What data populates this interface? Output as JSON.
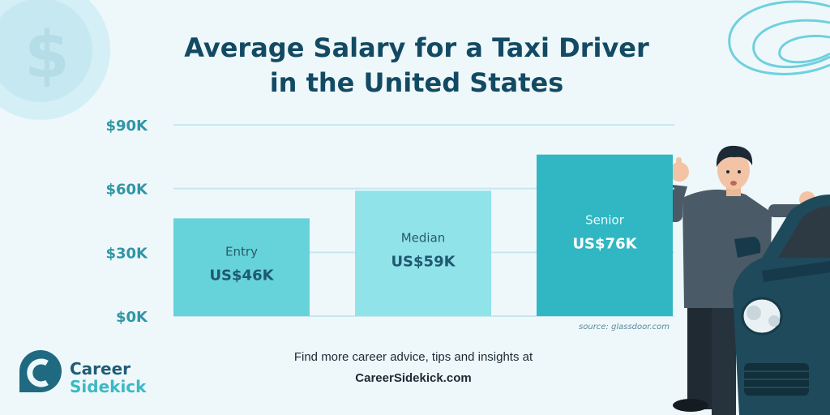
{
  "title": {
    "line1": "Average Salary for a Taxi Driver",
    "line2": "in the United States"
  },
  "chart_data": {
    "type": "bar",
    "categories": [
      "Entry",
      "Median",
      "Senior"
    ],
    "values": [
      46,
      59,
      76
    ],
    "value_labels": [
      "US$46K",
      "US$59K",
      "US$76K"
    ],
    "unit": "thousand USD",
    "ylim": [
      0,
      90
    ],
    "yticks": [
      0,
      30,
      60,
      90
    ],
    "ytick_labels": [
      "$0K",
      "$30K",
      "$60K",
      "$90K"
    ],
    "grid": true,
    "source": "source: glassdoor.com",
    "colors": [
      "#66d3db",
      "#90e3e9",
      "#30b7c3"
    ]
  },
  "footer": {
    "line1": "Find more career advice, tips and insights at",
    "line2": "CareerSidekick.com"
  },
  "logo": {
    "line1": "Career",
    "line2": "Sidekick"
  }
}
